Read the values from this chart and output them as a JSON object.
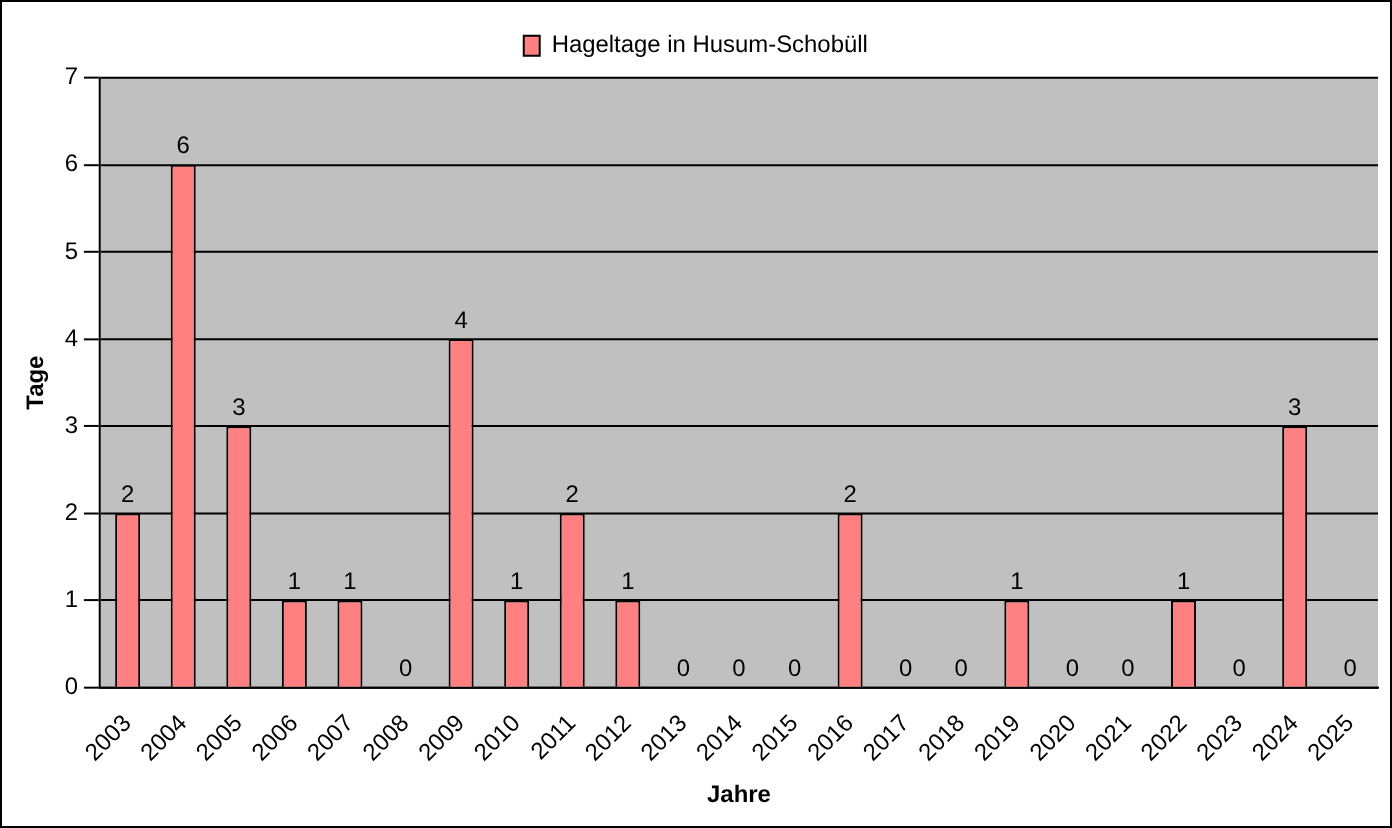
{
  "chart_data": {
    "type": "bar",
    "xlabel": "Jahre",
    "ylabel": "Tage",
    "categories": [
      "2003",
      "2004",
      "2005",
      "2006",
      "2007",
      "2008",
      "2009",
      "2010",
      "2011",
      "2012",
      "2013",
      "2014",
      "2015",
      "2016",
      "2017",
      "2018",
      "2019",
      "2020",
      "2021",
      "2022",
      "2023",
      "2024",
      "2025"
    ],
    "series": [
      {
        "name": "Hageltage in Husum-Schobüll",
        "color": "#ff8080",
        "values": [
          2,
          6,
          3,
          1,
          1,
          0,
          4,
          1,
          2,
          1,
          0,
          0,
          0,
          2,
          0,
          0,
          1,
          0,
          0,
          1,
          0,
          3,
          0
        ]
      }
    ],
    "ylim": [
      0,
      7
    ],
    "yticks": [
      0,
      1,
      2,
      3,
      4,
      5,
      6,
      7
    ],
    "grid": "y",
    "legend": "top",
    "data_labels": true
  }
}
